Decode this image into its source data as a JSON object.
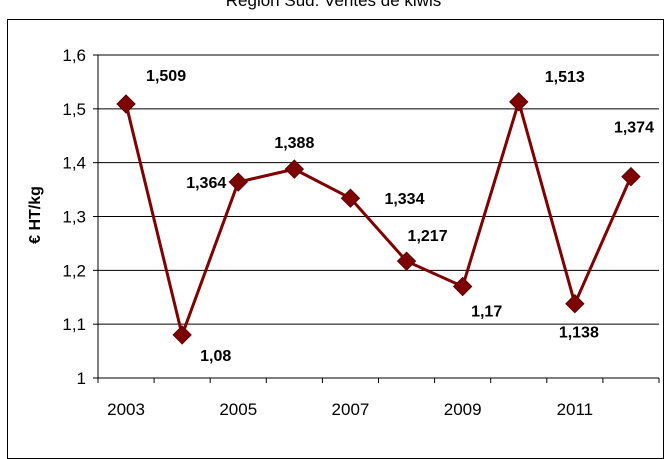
{
  "chart_data": {
    "type": "line",
    "title": "Région Sud: Ventes de kiwis",
    "xlabel": "",
    "ylabel": "€ HT/kg",
    "x": [
      2003,
      2004,
      2005,
      2006,
      2007,
      2008,
      2009,
      2010,
      2011,
      2012
    ],
    "x_tick_labels": [
      "2003",
      "2005",
      "2007",
      "2009",
      "2011"
    ],
    "y_tick_labels": [
      "1",
      "1,1",
      "1,2",
      "1,3",
      "1,4",
      "1,5",
      "1,6"
    ],
    "ylim": [
      1,
      1.6
    ],
    "grid": "horizontal",
    "series": [
      {
        "color": "#7f0000",
        "values": [
          1.509,
          1.08,
          1.364,
          1.388,
          1.334,
          1.217,
          1.17,
          1.513,
          1.138,
          1.374
        ],
        "labels": [
          "1,509",
          "1,08",
          "1,364",
          "1,388",
          "1,334",
          "1,217",
          "1,17",
          "1,513",
          "1,138",
          "1,374"
        ]
      }
    ]
  }
}
